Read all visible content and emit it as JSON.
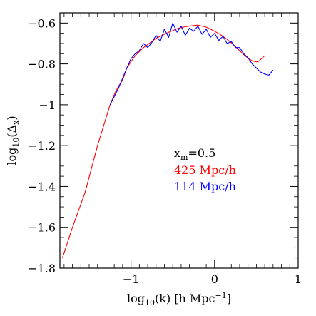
{
  "chart_data": {
    "type": "line",
    "xlabel": "log10(k) [h Mpc⁻¹]",
    "ylabel": "log10(Δx)",
    "xlim": [
      -1.85,
      1.0
    ],
    "ylim": [
      -1.8,
      -0.55
    ],
    "xticks": [
      -1,
      0,
      1
    ],
    "xtick_labels": [
      "−1",
      "0",
      "1"
    ],
    "yticks": [
      -1.8,
      -1.6,
      -1.4,
      -1.2,
      -1,
      -0.8,
      -0.6
    ],
    "ytick_labels": [
      "−1.8",
      "−1.6",
      "−1.4",
      "−1.2",
      "−1",
      "−0.8",
      "−0.6"
    ],
    "grid": false,
    "annotation": "xm=0.5",
    "series": [
      {
        "name": "425 Mpc/h",
        "color": "#ff0000",
        "x": [
          -1.82,
          -1.7,
          -1.55,
          -1.4,
          -1.25,
          -1.2,
          -1.15,
          -1.1,
          -1.05,
          -1.0,
          -0.95,
          -0.9,
          -0.85,
          -0.8,
          -0.75,
          -0.7,
          -0.65,
          -0.6,
          -0.55,
          -0.5,
          -0.45,
          -0.4,
          -0.35,
          -0.3,
          -0.25,
          -0.2,
          -0.15,
          -0.1,
          -0.05,
          0.0,
          0.05,
          0.1,
          0.15,
          0.2,
          0.25,
          0.3,
          0.35,
          0.4,
          0.45,
          0.5,
          0.53,
          0.56,
          0.6
        ],
        "y": [
          -1.75,
          -1.6,
          -1.43,
          -1.2,
          -1.0,
          -0.95,
          -0.91,
          -0.88,
          -0.82,
          -0.79,
          -0.76,
          -0.74,
          -0.72,
          -0.705,
          -0.69,
          -0.675,
          -0.665,
          -0.655,
          -0.645,
          -0.637,
          -0.628,
          -0.622,
          -0.618,
          -0.615,
          -0.612,
          -0.61,
          -0.615,
          -0.62,
          -0.63,
          -0.64,
          -0.652,
          -0.665,
          -0.68,
          -0.697,
          -0.715,
          -0.735,
          -0.755,
          -0.772,
          -0.785,
          -0.79,
          -0.787,
          -0.775,
          -0.76
        ]
      },
      {
        "name": "114 Mpc/h",
        "color": "#0000ff",
        "x": [
          -1.25,
          -1.2,
          -1.15,
          -1.1,
          -1.05,
          -1.0,
          -0.95,
          -0.9,
          -0.85,
          -0.8,
          -0.75,
          -0.7,
          -0.65,
          -0.6,
          -0.55,
          -0.5,
          -0.45,
          -0.4,
          -0.35,
          -0.3,
          -0.25,
          -0.2,
          -0.15,
          -0.1,
          -0.05,
          0.0,
          0.05,
          0.1,
          0.15,
          0.2,
          0.25,
          0.3,
          0.35,
          0.4,
          0.45,
          0.5,
          0.55,
          0.6,
          0.65,
          0.7
        ],
        "y": [
          -1.0,
          -0.96,
          -0.92,
          -0.87,
          -0.82,
          -0.775,
          -0.75,
          -0.735,
          -0.7,
          -0.72,
          -0.695,
          -0.66,
          -0.69,
          -0.63,
          -0.67,
          -0.6,
          -0.645,
          -0.615,
          -0.66,
          -0.625,
          -0.64,
          -0.615,
          -0.655,
          -0.63,
          -0.67,
          -0.65,
          -0.685,
          -0.665,
          -0.7,
          -0.69,
          -0.72,
          -0.72,
          -0.75,
          -0.77,
          -0.8,
          -0.82,
          -0.84,
          -0.85,
          -0.855,
          -0.83
        ]
      }
    ]
  }
}
